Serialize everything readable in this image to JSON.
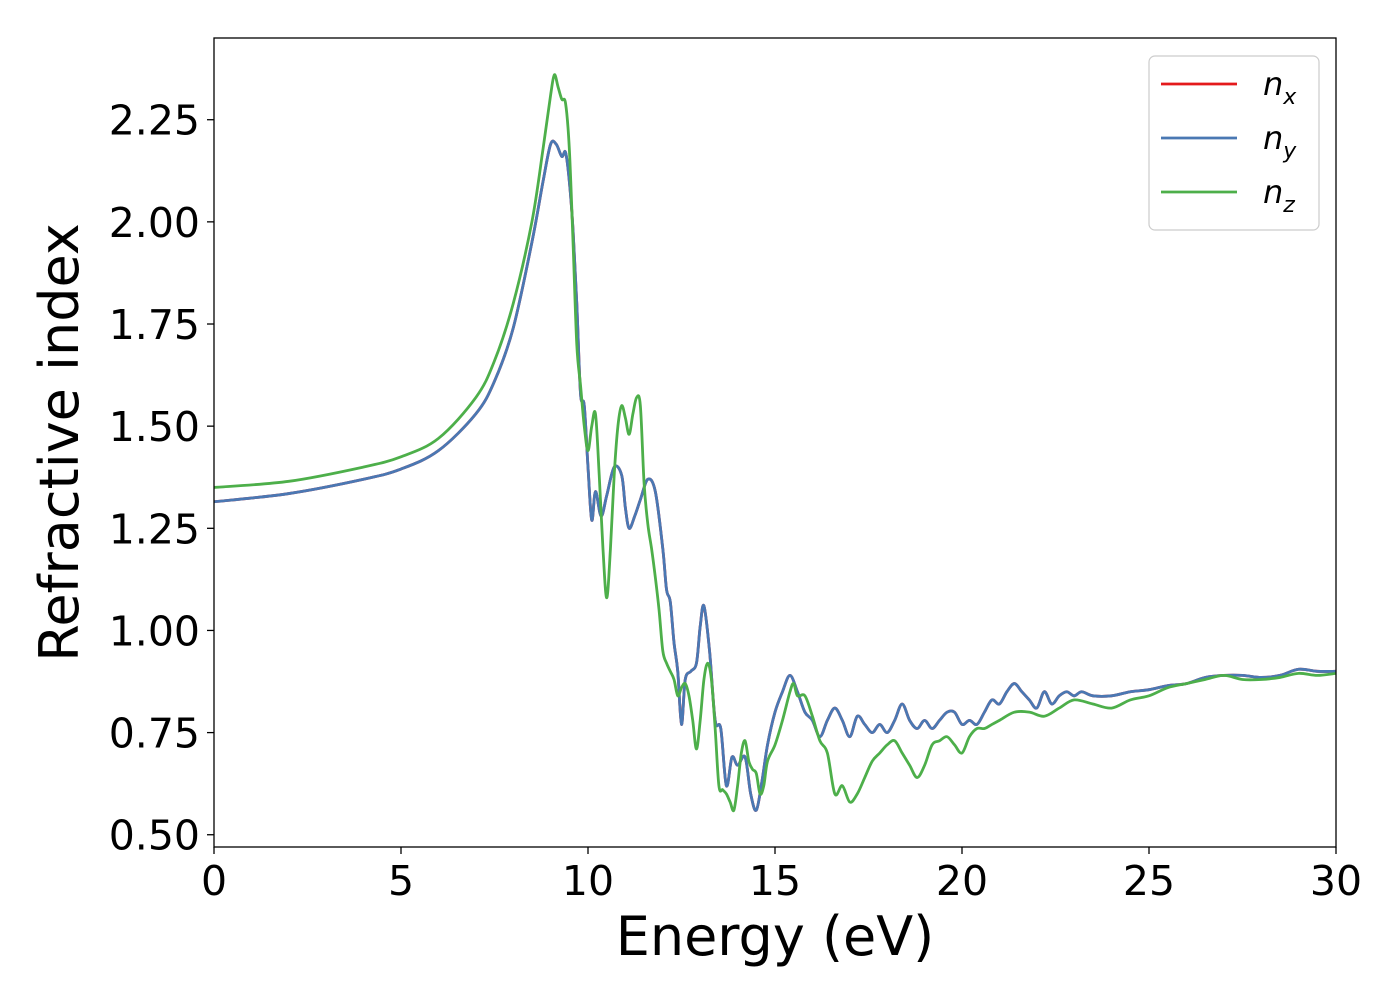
{
  "chart_data": {
    "type": "line",
    "title": "",
    "xlabel": "Energy (eV)",
    "ylabel": "Refractive index",
    "xlim": [
      0,
      30
    ],
    "ylim": [
      0.47,
      2.45
    ],
    "xticks": [
      0,
      5,
      10,
      15,
      20,
      25,
      30
    ],
    "xtick_labels": [
      "0",
      "5",
      "10",
      "15",
      "20",
      "25",
      "30"
    ],
    "yticks": [
      0.5,
      0.75,
      1.0,
      1.25,
      1.5,
      1.75,
      2.0,
      2.25
    ],
    "ytick_labels": [
      "0.50",
      "0.75",
      "1.00",
      "1.25",
      "1.50",
      "1.75",
      "2.00",
      "2.25"
    ],
    "grid": false,
    "legend_position": "top-right",
    "series": [
      {
        "name": "n_x",
        "legend_base": "n",
        "legend_sub": "x",
        "color": "#e41a1c",
        "x": [
          0,
          2,
          4,
          5,
          6,
          7,
          7.5,
          8,
          8.5,
          8.8,
          9.0,
          9.15,
          9.3,
          9.4,
          9.5,
          9.6,
          9.7,
          9.8,
          9.9,
          10.0,
          10.1,
          10.2,
          10.35,
          10.5,
          10.7,
          10.9,
          11.0,
          11.1,
          11.25,
          11.4,
          11.6,
          11.8,
          12.0,
          12.1,
          12.2,
          12.3,
          12.4,
          12.5,
          12.6,
          12.75,
          12.9,
          13.0,
          13.1,
          13.25,
          13.4,
          13.55,
          13.7,
          13.85,
          14.0,
          14.2,
          14.35,
          14.5,
          14.65,
          14.8,
          15.0,
          15.2,
          15.4,
          15.6,
          15.8,
          16.0,
          16.2,
          16.4,
          16.6,
          16.8,
          17.0,
          17.2,
          17.4,
          17.6,
          17.8,
          18.0,
          18.2,
          18.4,
          18.6,
          18.8,
          19.0,
          19.2,
          19.4,
          19.6,
          19.8,
          20.0,
          20.2,
          20.4,
          20.6,
          20.8,
          21.0,
          21.2,
          21.4,
          21.6,
          21.8,
          22.0,
          22.2,
          22.4,
          22.6,
          22.8,
          23.0,
          23.2,
          23.5,
          24.0,
          24.5,
          25.0,
          25.5,
          26.0,
          26.5,
          27.0,
          27.5,
          28.0,
          28.5,
          29.0,
          29.5,
          30.0
        ],
        "y": [
          1.315,
          1.335,
          1.37,
          1.395,
          1.44,
          1.53,
          1.61,
          1.74,
          1.95,
          2.1,
          2.19,
          2.19,
          2.16,
          2.17,
          2.1,
          1.98,
          1.8,
          1.58,
          1.55,
          1.4,
          1.27,
          1.34,
          1.28,
          1.33,
          1.4,
          1.38,
          1.3,
          1.25,
          1.28,
          1.32,
          1.37,
          1.34,
          1.2,
          1.1,
          1.07,
          0.97,
          0.9,
          0.77,
          0.88,
          0.9,
          0.92,
          1.01,
          1.06,
          0.95,
          0.78,
          0.76,
          0.62,
          0.69,
          0.67,
          0.69,
          0.6,
          0.56,
          0.63,
          0.72,
          0.8,
          0.85,
          0.89,
          0.85,
          0.8,
          0.78,
          0.74,
          0.78,
          0.81,
          0.78,
          0.74,
          0.79,
          0.77,
          0.75,
          0.77,
          0.75,
          0.78,
          0.82,
          0.78,
          0.76,
          0.78,
          0.76,
          0.78,
          0.8,
          0.8,
          0.77,
          0.78,
          0.77,
          0.8,
          0.83,
          0.82,
          0.85,
          0.87,
          0.85,
          0.83,
          0.81,
          0.85,
          0.82,
          0.84,
          0.85,
          0.84,
          0.85,
          0.84,
          0.84,
          0.85,
          0.855,
          0.865,
          0.87,
          0.885,
          0.89,
          0.89,
          0.885,
          0.89,
          0.905,
          0.9,
          0.9
        ]
      },
      {
        "name": "n_y",
        "legend_base": "n",
        "legend_sub": "y",
        "color": "#4a78b3",
        "x": [
          0,
          2,
          4,
          5,
          6,
          7,
          7.5,
          8,
          8.5,
          8.8,
          9.0,
          9.15,
          9.3,
          9.4,
          9.5,
          9.6,
          9.7,
          9.8,
          9.9,
          10.0,
          10.1,
          10.2,
          10.35,
          10.5,
          10.7,
          10.9,
          11.0,
          11.1,
          11.25,
          11.4,
          11.6,
          11.8,
          12.0,
          12.1,
          12.2,
          12.3,
          12.4,
          12.5,
          12.6,
          12.75,
          12.9,
          13.0,
          13.1,
          13.25,
          13.4,
          13.55,
          13.7,
          13.85,
          14.0,
          14.2,
          14.35,
          14.5,
          14.65,
          14.8,
          15.0,
          15.2,
          15.4,
          15.6,
          15.8,
          16.0,
          16.2,
          16.4,
          16.6,
          16.8,
          17.0,
          17.2,
          17.4,
          17.6,
          17.8,
          18.0,
          18.2,
          18.4,
          18.6,
          18.8,
          19.0,
          19.2,
          19.4,
          19.6,
          19.8,
          20.0,
          20.2,
          20.4,
          20.6,
          20.8,
          21.0,
          21.2,
          21.4,
          21.6,
          21.8,
          22.0,
          22.2,
          22.4,
          22.6,
          22.8,
          23.0,
          23.2,
          23.5,
          24.0,
          24.5,
          25.0,
          25.5,
          26.0,
          26.5,
          27.0,
          27.5,
          28.0,
          28.5,
          29.0,
          29.5,
          30.0
        ],
        "y": [
          1.315,
          1.335,
          1.37,
          1.395,
          1.44,
          1.53,
          1.61,
          1.74,
          1.95,
          2.1,
          2.19,
          2.19,
          2.16,
          2.17,
          2.1,
          1.98,
          1.8,
          1.58,
          1.55,
          1.4,
          1.27,
          1.34,
          1.28,
          1.33,
          1.4,
          1.38,
          1.3,
          1.25,
          1.28,
          1.32,
          1.37,
          1.34,
          1.2,
          1.1,
          1.07,
          0.97,
          0.9,
          0.77,
          0.88,
          0.9,
          0.92,
          1.01,
          1.06,
          0.95,
          0.78,
          0.76,
          0.62,
          0.69,
          0.67,
          0.69,
          0.6,
          0.56,
          0.63,
          0.72,
          0.8,
          0.85,
          0.89,
          0.85,
          0.8,
          0.78,
          0.74,
          0.78,
          0.81,
          0.78,
          0.74,
          0.79,
          0.77,
          0.75,
          0.77,
          0.75,
          0.78,
          0.82,
          0.78,
          0.76,
          0.78,
          0.76,
          0.78,
          0.8,
          0.8,
          0.77,
          0.78,
          0.77,
          0.8,
          0.83,
          0.82,
          0.85,
          0.87,
          0.85,
          0.83,
          0.81,
          0.85,
          0.82,
          0.84,
          0.85,
          0.84,
          0.85,
          0.84,
          0.84,
          0.85,
          0.855,
          0.865,
          0.87,
          0.885,
          0.89,
          0.89,
          0.885,
          0.89,
          0.905,
          0.9,
          0.9
        ]
      },
      {
        "name": "n_z",
        "legend_base": "n",
        "legend_sub": "z",
        "color": "#4daf4a",
        "x": [
          0,
          2,
          4,
          5,
          6,
          7,
          7.5,
          8,
          8.5,
          8.8,
          9.0,
          9.1,
          9.2,
          9.3,
          9.4,
          9.5,
          9.6,
          9.7,
          9.8,
          9.9,
          10.0,
          10.1,
          10.2,
          10.3,
          10.4,
          10.5,
          10.6,
          10.7,
          10.8,
          10.9,
          11.0,
          11.1,
          11.2,
          11.3,
          11.4,
          11.5,
          11.6,
          11.7,
          11.8,
          11.9,
          12.0,
          12.1,
          12.2,
          12.3,
          12.4,
          12.5,
          12.6,
          12.7,
          12.8,
          12.9,
          13.0,
          13.1,
          13.2,
          13.3,
          13.4,
          13.5,
          13.6,
          13.7,
          13.8,
          13.9,
          14.0,
          14.1,
          14.2,
          14.3,
          14.4,
          14.5,
          14.6,
          14.7,
          14.8,
          15.0,
          15.2,
          15.4,
          15.5,
          15.6,
          15.8,
          16.0,
          16.2,
          16.4,
          16.6,
          16.8,
          17.0,
          17.2,
          17.4,
          17.6,
          17.8,
          18.0,
          18.2,
          18.4,
          18.6,
          18.8,
          19.0,
          19.2,
          19.4,
          19.6,
          19.8,
          20.0,
          20.2,
          20.4,
          20.6,
          20.8,
          21.0,
          21.4,
          21.8,
          22.2,
          22.6,
          23.0,
          23.5,
          24.0,
          24.5,
          25.0,
          25.5,
          26.0,
          26.5,
          27.0,
          27.5,
          28.0,
          28.5,
          29.0,
          29.5,
          30.0
        ],
        "y": [
          1.35,
          1.365,
          1.4,
          1.425,
          1.47,
          1.57,
          1.66,
          1.8,
          2.0,
          2.18,
          2.31,
          2.36,
          2.33,
          2.3,
          2.29,
          2.18,
          1.95,
          1.7,
          1.6,
          1.5,
          1.44,
          1.5,
          1.53,
          1.38,
          1.2,
          1.08,
          1.2,
          1.38,
          1.5,
          1.55,
          1.52,
          1.48,
          1.53,
          1.57,
          1.55,
          1.36,
          1.26,
          1.2,
          1.13,
          1.05,
          0.95,
          0.92,
          0.9,
          0.88,
          0.84,
          0.86,
          0.87,
          0.84,
          0.78,
          0.71,
          0.78,
          0.88,
          0.92,
          0.88,
          0.76,
          0.62,
          0.61,
          0.6,
          0.58,
          0.56,
          0.62,
          0.7,
          0.73,
          0.68,
          0.66,
          0.65,
          0.6,
          0.62,
          0.68,
          0.72,
          0.78,
          0.85,
          0.87,
          0.84,
          0.84,
          0.79,
          0.73,
          0.7,
          0.6,
          0.62,
          0.58,
          0.6,
          0.64,
          0.68,
          0.7,
          0.72,
          0.73,
          0.7,
          0.67,
          0.64,
          0.67,
          0.72,
          0.73,
          0.74,
          0.72,
          0.7,
          0.74,
          0.76,
          0.76,
          0.77,
          0.78,
          0.8,
          0.8,
          0.79,
          0.81,
          0.83,
          0.82,
          0.81,
          0.83,
          0.84,
          0.86,
          0.87,
          0.88,
          0.89,
          0.88,
          0.88,
          0.885,
          0.895,
          0.89,
          0.895
        ]
      }
    ]
  }
}
